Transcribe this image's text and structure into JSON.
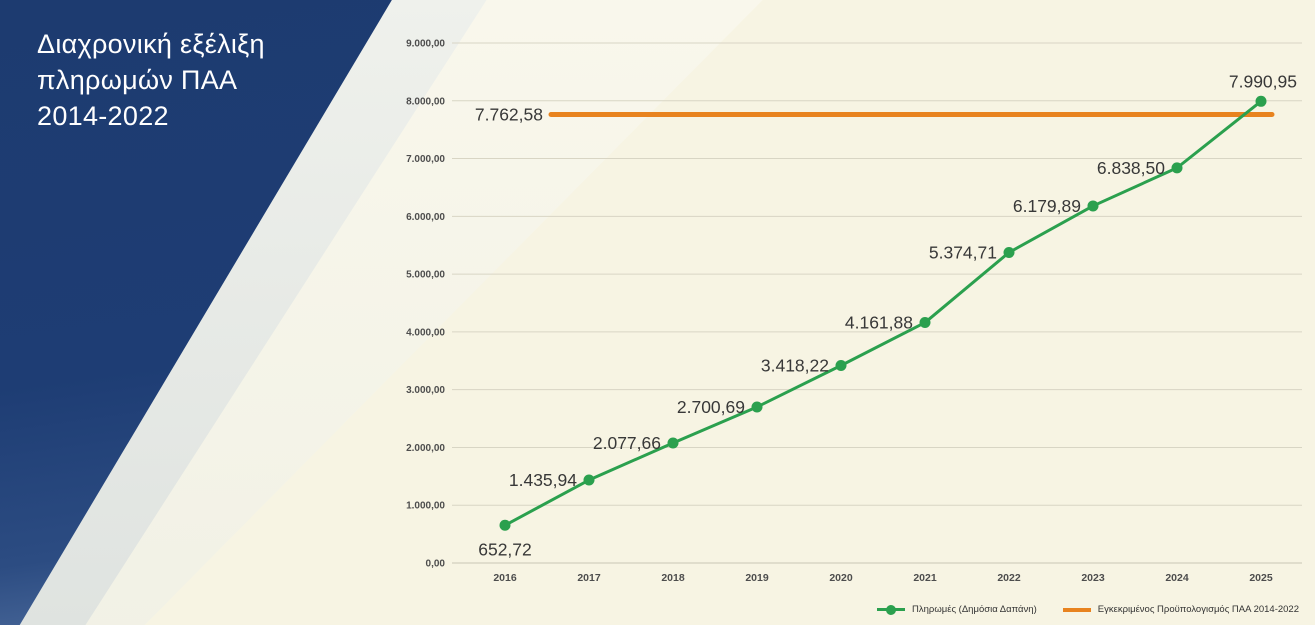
{
  "title": "Διαχρονική εξέλιξη πληρωμών ΠΑΑ 2014-2022",
  "chart_data": {
    "type": "line",
    "title": "Διαχρονική εξέλιξη πληρωμών ΠΑΑ 2014-2022",
    "x": [
      "2016",
      "2017",
      "2018",
      "2019",
      "2020",
      "2021",
      "2022",
      "2023",
      "2024",
      "2025"
    ],
    "series": [
      {
        "name": "Πληρωμές (Δημόσια Δαπάνη)",
        "type": "line",
        "color": "#2ba04e",
        "values": [
          652.72,
          1435.94,
          2077.66,
          2700.69,
          3418.22,
          4161.88,
          5374.71,
          6179.89,
          6838.5,
          7990.95
        ],
        "labels": [
          "652,72",
          "1.435,94",
          "2.077,66",
          "2.700,69",
          "3.418,22",
          "4.161,88",
          "5.374,71",
          "6.179,89",
          "6.838,50",
          "7.990,95"
        ]
      },
      {
        "name": "Εγκεκριμένος Προϋπολογισμός ΠΑΑ 2014-2022",
        "type": "hline",
        "color": "#e8831f",
        "value": 7762.58,
        "label": "7.762,58"
      }
    ],
    "ylim": [
      0,
      9000
    ],
    "ytick_step": 1000,
    "ytick_labels": [
      "0,00",
      "1.000,00",
      "2.000,00",
      "3.000,00",
      "4.000,00",
      "5.000,00",
      "6.000,00",
      "7.000,00",
      "8.000,00",
      "9.000,00"
    ],
    "grid": true,
    "legend_position": "bottom-right",
    "colors": {
      "payments": "#2ba04e",
      "budget": "#e8831f",
      "background": "#f7f4e3",
      "panel_blue": "#1d3b70"
    }
  }
}
